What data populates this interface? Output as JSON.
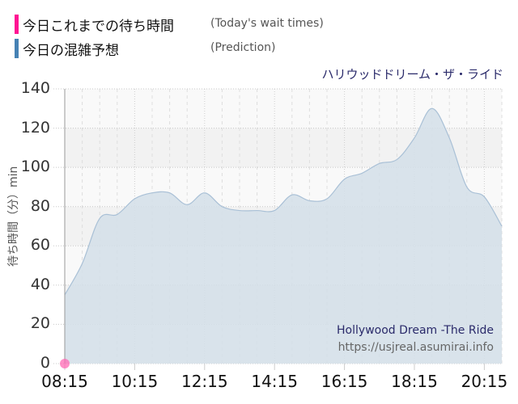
{
  "legend": {
    "items": [
      {
        "label_jp": "今日これまでの待ち時間",
        "label_en": "(Today's wait times)",
        "color": "#ff1493"
      },
      {
        "label_jp": "今日の混雑予想",
        "label_en": "(Prediction)",
        "color": "#4682b4"
      }
    ]
  },
  "ride_name_jp": "ハリウッドドリーム・ザ・ライド",
  "watermark": {
    "name": "Hollywood Dream -The Ride",
    "url": "https://usjreal.asumirai.info"
  },
  "axis": {
    "ylabel": "待ち時間（分）min",
    "yticks": [
      "140",
      "120",
      "100",
      "80",
      "60",
      "40",
      "20",
      "0"
    ],
    "xticks": [
      "08:15",
      "10:15",
      "12:15",
      "14:15",
      "16:15",
      "18:15",
      "20:15"
    ]
  },
  "chart_data": {
    "type": "area",
    "title": "ハリウッドドリーム・ザ・ライド",
    "xlabel": "",
    "ylabel": "待ち時間（分）min",
    "ylim": [
      0,
      140
    ],
    "grid": true,
    "legend_position": "top-left",
    "x": [
      "08:15",
      "08:45",
      "09:15",
      "09:45",
      "10:15",
      "10:45",
      "11:15",
      "11:45",
      "12:15",
      "12:45",
      "13:15",
      "13:45",
      "14:15",
      "14:45",
      "15:15",
      "15:45",
      "16:15",
      "16:45",
      "17:15",
      "17:45",
      "18:15",
      "18:45",
      "19:15",
      "19:45",
      "20:15",
      "20:45"
    ],
    "series": [
      {
        "name": "今日の混雑予想 (Prediction)",
        "color": "#4682b4",
        "values": [
          35,
          51,
          74,
          76,
          84,
          87,
          87,
          81,
          87,
          80,
          78,
          78,
          78,
          86,
          83,
          84,
          94,
          97,
          102,
          104,
          115,
          130,
          115,
          90,
          85,
          70
        ]
      },
      {
        "name": "今日これまでの待ち時間 (Today's wait times)",
        "color": "#ff1493",
        "points": [
          {
            "x": "08:15",
            "y": 0
          }
        ]
      }
    ]
  }
}
